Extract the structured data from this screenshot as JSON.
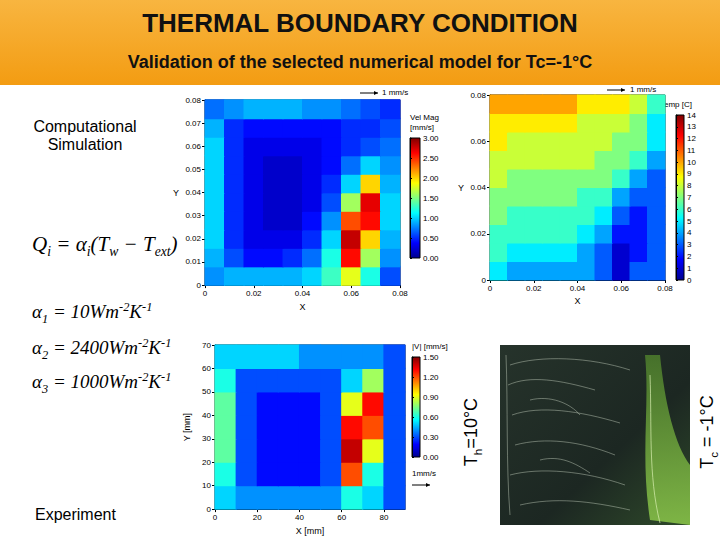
{
  "header": {
    "title": "THERMAL BOUNDARY CONDITION",
    "subtitle": "Validation of the selected numerical model for Tc=-1°C"
  },
  "side_labels": {
    "simulation": "Computational Simulation",
    "experiment": "Experiment"
  },
  "formula": [
    {
      "t": "Q"
    },
    {
      "sub": "i"
    },
    {
      "t": " = α"
    },
    {
      "sub": "i"
    },
    {
      "t": "(T"
    },
    {
      "sub": "w"
    },
    {
      "t": " − T"
    },
    {
      "sub": "ext"
    },
    {
      "t": ")"
    }
  ],
  "coefficients": [
    [
      {
        "t": "α"
      },
      {
        "sub": "1"
      },
      {
        "t": " = "
      },
      {
        "num": 10
      },
      {
        "t": "Wm"
      },
      {
        "sup": "-2"
      },
      {
        "t": "K"
      },
      {
        "sup": "-1"
      }
    ],
    [
      {
        "t": "α"
      },
      {
        "sub": "2"
      },
      {
        "t": " = "
      },
      {
        "num": 2400
      },
      {
        "t": "Wm"
      },
      {
        "sup": "-2"
      },
      {
        "t": "K"
      },
      {
        "sup": "-1"
      }
    ],
    [
      {
        "t": "α"
      },
      {
        "sub": "3"
      },
      {
        "t": " = "
      },
      {
        "num": 1000
      },
      {
        "t": "Wm"
      },
      {
        "sup": "-2"
      },
      {
        "t": "K"
      },
      {
        "sup": "-1"
      }
    ]
  ],
  "walls": {
    "hot": [
      {
        "t": "T"
      },
      {
        "sub": "h"
      },
      {
        "t": "=10°C"
      }
    ],
    "cold": [
      {
        "t": "T"
      },
      {
        "sub": "c"
      },
      {
        "t": " = -1°C"
      }
    ]
  },
  "chart_data": [
    {
      "type": "heatmap",
      "annotation": "1 mm/s",
      "xlabel": "X",
      "ylabel": "Y",
      "xlim": [
        0,
        0.08
      ],
      "ylim": [
        0,
        0.08
      ],
      "xticks": [
        0,
        0.02,
        0.04,
        0.06,
        0.08
      ],
      "yticks": [
        0,
        0.01,
        0.02,
        0.03,
        0.04,
        0.05,
        0.06,
        0.07,
        0.08
      ],
      "x": [
        0.004,
        0.012,
        0.02,
        0.028,
        0.036,
        0.044,
        0.052,
        0.06,
        0.068,
        0.076
      ],
      "y": [
        0.004,
        0.012,
        0.02,
        0.028,
        0.036,
        0.044,
        0.052,
        0.06,
        0.068,
        0.076
      ],
      "cells": [
        [
          0.8,
          0.9,
          0.9,
          0.9,
          0.9,
          1.0,
          1.3,
          1.8,
          1.2,
          0.6
        ],
        [
          0.9,
          0.6,
          0.4,
          0.4,
          0.5,
          0.7,
          1.2,
          2.6,
          1.6,
          0.8
        ],
        [
          1.0,
          0.5,
          0.3,
          0.3,
          0.3,
          0.5,
          1.0,
          2.8,
          2.0,
          0.9
        ],
        [
          1.0,
          0.5,
          0.3,
          0.2,
          0.2,
          0.4,
          0.8,
          2.4,
          2.6,
          1.0
        ],
        [
          1.0,
          0.5,
          0.3,
          0.2,
          0.2,
          0.3,
          0.6,
          1.6,
          2.7,
          1.0
        ],
        [
          1.0,
          0.5,
          0.3,
          0.2,
          0.2,
          0.3,
          0.5,
          1.0,
          2.0,
          0.9
        ],
        [
          1.0,
          0.5,
          0.3,
          0.2,
          0.2,
          0.3,
          0.4,
          0.7,
          1.0,
          0.8
        ],
        [
          1.0,
          0.5,
          0.3,
          0.3,
          0.3,
          0.3,
          0.4,
          0.5,
          0.6,
          0.7
        ],
        [
          0.9,
          0.5,
          0.4,
          0.4,
          0.4,
          0.4,
          0.4,
          0.5,
          0.5,
          0.6
        ],
        [
          0.7,
          0.8,
          0.9,
          0.9,
          0.9,
          0.8,
          0.8,
          0.7,
          0.6,
          0.5
        ]
      ],
      "colorbar": {
        "title": [
          "Vel Mag",
          "[mm/s]"
        ],
        "range": [
          0,
          3
        ],
        "ticks": [
          {
            "value": 0,
            "label": "0.00"
          },
          {
            "value": 0.5,
            "label": "0.50"
          },
          {
            "value": 1,
            "label": "1.00"
          },
          {
            "value": 1.5,
            "label": "1.50"
          },
          {
            "value": 2,
            "label": "2.00"
          },
          {
            "value": 2.5,
            "label": "2.50"
          },
          {
            "value": 3,
            "label": "3.00"
          }
        ]
      }
    },
    {
      "type": "heatmap",
      "annotation": "1 mm/s",
      "xlabel": "X",
      "ylabel": "Y",
      "xlim": [
        0,
        0.08
      ],
      "ylim": [
        0,
        0.08
      ],
      "xticks": [
        0,
        0.02,
        0.04,
        0.06,
        0.08
      ],
      "yticks": [
        0,
        0.02,
        0.04,
        0.06,
        0.08
      ],
      "x": [
        0.004,
        0.012,
        0.02,
        0.028,
        0.036,
        0.044,
        0.052,
        0.06,
        0.068,
        0.076
      ],
      "y": [
        0.004,
        0.012,
        0.02,
        0.028,
        0.036,
        0.044,
        0.052,
        0.06,
        0.068,
        0.076
      ],
      "cells": [
        [
          5,
          4,
          4,
          4,
          4,
          4,
          3,
          1,
          3,
          3
        ],
        [
          6,
          5,
          5,
          5,
          5,
          4,
          3,
          1,
          2,
          3
        ],
        [
          6,
          6,
          6,
          6,
          6,
          5,
          4,
          2,
          2,
          3
        ],
        [
          7,
          6,
          6,
          6,
          6,
          6,
          5,
          3,
          2,
          3
        ],
        [
          7,
          7,
          7,
          7,
          7,
          6,
          6,
          4,
          3,
          3
        ],
        [
          8,
          7,
          7,
          7,
          7,
          7,
          7,
          6,
          4,
          3
        ],
        [
          8,
          8,
          8,
          8,
          8,
          8,
          7,
          7,
          6,
          4
        ],
        [
          9,
          8,
          8,
          8,
          8,
          8,
          8,
          7,
          7,
          5
        ],
        [
          9,
          9,
          9,
          9,
          9,
          8,
          8,
          8,
          7,
          5
        ],
        [
          10,
          10,
          10,
          10,
          10,
          9,
          9,
          9,
          8,
          6
        ]
      ],
      "colorbar": {
        "title": [
          "Temp [C]"
        ],
        "range": [
          0,
          14
        ],
        "ticks": [
          0,
          1,
          2,
          3,
          4,
          5,
          6,
          7,
          8,
          9,
          10,
          11,
          12,
          13,
          14
        ]
      }
    },
    {
      "type": "heatmap",
      "annotation": "1mm/s",
      "xlabel": "X [mm]",
      "ylabel": "Y [mm]",
      "xlim": [
        0,
        90
      ],
      "ylim": [
        0,
        70
      ],
      "xticks": [
        0,
        20,
        40,
        60,
        80
      ],
      "yticks": [
        0,
        10,
        20,
        30,
        40,
        50,
        60,
        70
      ],
      "x": [
        5,
        15,
        25,
        35,
        45,
        55,
        65,
        75,
        85
      ],
      "y": [
        5,
        15,
        25,
        35,
        45,
        55,
        65
      ],
      "cells": [
        [
          0.5,
          0.4,
          0.4,
          0.4,
          0.4,
          0.4,
          0.6,
          0.5,
          0.3
        ],
        [
          0.6,
          0.3,
          0.2,
          0.2,
          0.2,
          0.3,
          1.2,
          0.6,
          0.3
        ],
        [
          0.7,
          0.3,
          0.2,
          0.2,
          0.2,
          0.3,
          1.4,
          0.9,
          0.3
        ],
        [
          0.7,
          0.3,
          0.2,
          0.2,
          0.2,
          0.3,
          1.3,
          1.2,
          0.3
        ],
        [
          0.7,
          0.3,
          0.2,
          0.2,
          0.2,
          0.3,
          0.9,
          1.3,
          0.3
        ],
        [
          0.6,
          0.3,
          0.3,
          0.3,
          0.3,
          0.3,
          0.5,
          0.8,
          0.3
        ],
        [
          0.5,
          0.5,
          0.5,
          0.5,
          0.4,
          0.4,
          0.4,
          0.4,
          0.3
        ]
      ],
      "colorbar": {
        "title": [
          "|V| [mm/s]"
        ],
        "range": [
          0,
          1.5
        ],
        "ticks": [
          {
            "value": 0,
            "label": "0.00"
          },
          {
            "value": 0.3,
            "label": "0.30"
          },
          {
            "value": 0.6,
            "label": "0.60"
          },
          {
            "value": 0.9,
            "label": "0.90"
          },
          {
            "value": 1.2,
            "label": "1.20"
          },
          {
            "value": 1.5,
            "label": "1.50"
          }
        ]
      }
    }
  ]
}
